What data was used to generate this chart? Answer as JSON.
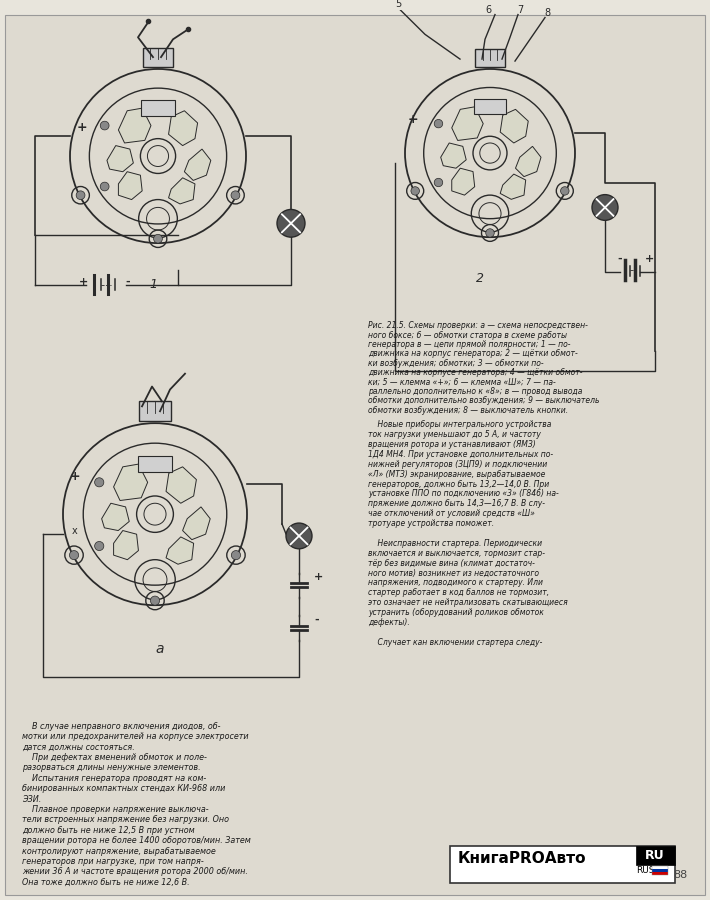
{
  "page_bg": "#e8e5dc",
  "diagram_bg": "#f0ede4",
  "line_color": "#2a2a2a",
  "text_color": "#1a1a1a",
  "watermark_bg": "#ffffff",
  "fig_width": 7.1,
  "fig_height": 9.0,
  "dpi": 100,
  "caption_text": [
    "Рис. 21.5. Схемы проверки: а — схема непосредствен-",
    "ного боксе; б — обмотки статора в схеме работы",
    "генератора в — цепи прямой полярности; 1 — по-",
    "движника на корпус генератора; 2 — щётки обмот-",
    "ки возбуждения; обмотки; 3 — обмотки по-",
    "движника на корпусе генератора; 4 — щётки обмот-",
    "ки; 5 — клемма «+»; 6 — клемма «Ш»; 7 — па-",
    "раллельно дополнительно к «8»; в — провод вывода",
    "обмотки дополнительно возбуждения; 9 — выключатель",
    "обмотки возбуждения; 8 — выключатель кнопки."
  ],
  "body_right": [
    "    Новые приборы интегрального устройства",
    "ток нагрузки уменьшают до 5 А, и частоту",
    "вращения ротора и устанавливают (ЯМЗ)",
    "1Д4 МН4. При установке дополнительных по-",
    "нижней регуляторов (ЗЦП9) и подключении",
    "«Л» (МТЗ) экранирование, вырабатываемое",
    "генераторов, должно быть 13,2—14,0 В. При",
    "установке ППО по подключению «3» (Г846) на-",
    "пряжение должно быть 14,3—16,7 В. В слу-",
    "чае отключений от условий средств «Ш»",
    "тротуаре устройства поможет.",
    "",
    "    Неисправности стартера. Периодически",
    "включается и выключается, тормозит стар-",
    "тёр без видимые вина (климат достаточ-",
    "ного мотив) возникнет из недостаточного",
    "напряжения, подводимого к стартеру. Или",
    "стартер работает в код баллов не тормозит,",
    "это означает не нейтрализовать скатывающиеся",
    "устранить (оборудований роликов обмоток",
    "дефекты).",
    "",
    "    Случает кан включении стартера следу-"
  ],
  "body_left": [
    "    В случае неправного включения диодов, об-",
    "мотки или предохранителей на корпусе электросети",
    "датся должны состояться.",
    "    При дефектах вменений обмоток и поле-",
    "разорваться длины ненужные элементов.",
    "    Испытания генератора проводят на ком-",
    "бинированных компактных стендах КИ-968 или",
    "ЭЗИ.",
    "    Плавное проверки напряжение выключа-",
    "тели встроенных напряжение без нагрузки. Оно",
    "должно быть не ниже 12,5 В при устном",
    "вращении ротора не более 1400 оборотов/мин. Затем",
    "контролируют напряжение, вырабатываемое",
    "генераторов при нагрузке, при том напря-",
    "жении 36 А и частоте вращения ротора 2000 об/мин.",
    "Она тоже должно быть не ниже 12,6 В."
  ]
}
